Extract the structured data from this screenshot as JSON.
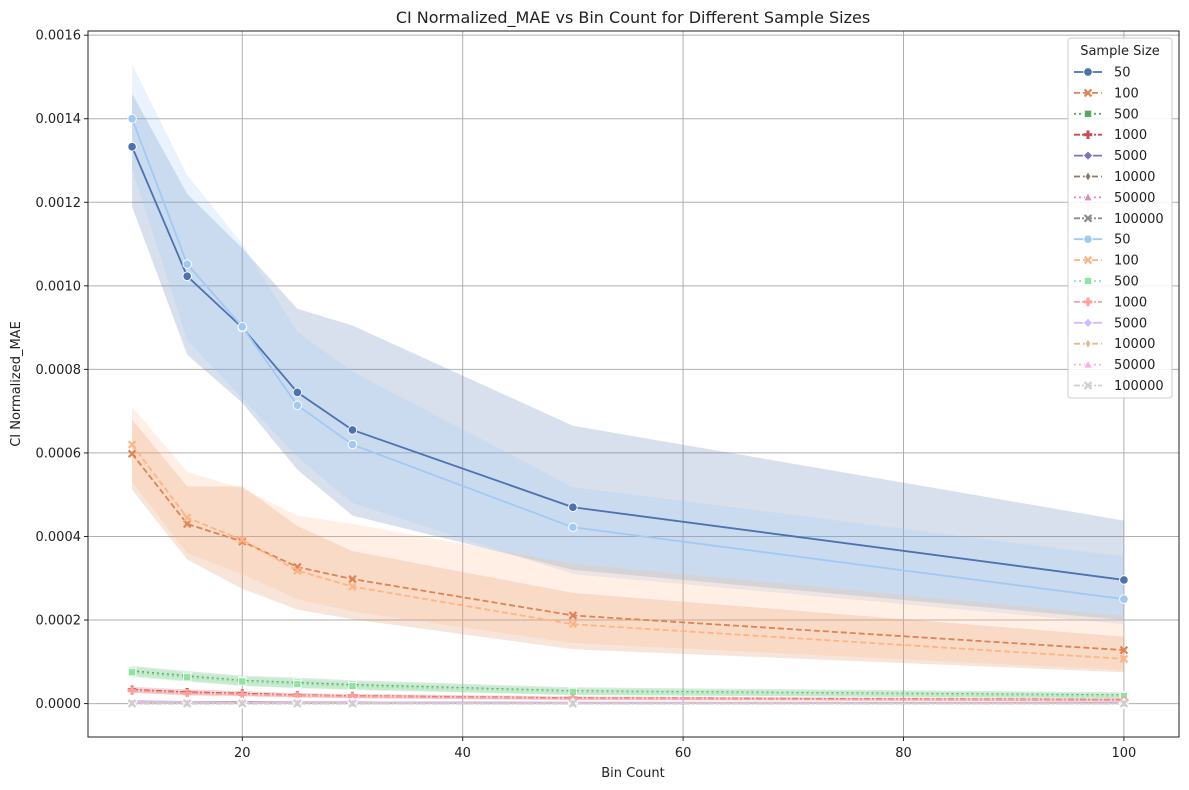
{
  "chart_data": {
    "type": "line",
    "title": "CI Normalized_MAE vs Bin Count for Different Sample Sizes",
    "xlabel": "Bin Count",
    "ylabel": "CI Normalized_MAE",
    "xlim": [
      6,
      105
    ],
    "ylim": [
      -8e-05,
      0.00161
    ],
    "xticks": [
      20,
      40,
      60,
      80,
      100
    ],
    "yticks": [
      0,
      0.0002,
      0.0004,
      0.0006,
      0.0008,
      0.001,
      0.0012,
      0.0014,
      0.0016
    ],
    "ytick_labels": [
      "0.0000",
      "0.0002",
      "0.0004",
      "0.0006",
      "0.0008",
      "0.0010",
      "0.0012",
      "0.0014",
      "0.0016"
    ],
    "grid": true,
    "legend_title": "Sample Size",
    "legend_position": "top-right",
    "x": [
      10,
      15,
      20,
      25,
      30,
      50,
      100
    ],
    "series": [
      {
        "name": "50",
        "color": "#4c72b0",
        "dash": "",
        "marker": "circle",
        "values": [
          0.001333,
          0.001023,
          0.0009,
          0.000745,
          0.000655,
          0.00047,
          0.000296
        ],
        "lower": [
          0.00119,
          0.000835,
          0.00072,
          0.00056,
          0.00045,
          0.00032,
          0.0002
        ],
        "upper": [
          0.00146,
          0.00122,
          0.00109,
          0.000945,
          0.000905,
          0.000665,
          0.000438
        ]
      },
      {
        "name": "100",
        "color": "#dd8452",
        "dash": "6,3",
        "marker": "x",
        "values": [
          0.000598,
          0.00043,
          0.000388,
          0.000327,
          0.000298,
          0.000211,
          0.000128
        ],
        "lower": [
          0.000512,
          0.000345,
          0.000275,
          0.000225,
          0.000202,
          0.00013,
          7.5e-05
        ],
        "upper": [
          0.00068,
          0.00052,
          0.00052,
          0.000425,
          0.000365,
          0.000265,
          0.00016
        ]
      },
      {
        "name": "500",
        "color": "#55a868",
        "dash": "2,3",
        "marker": "square",
        "values": [
          7.8e-05,
          6.6e-05,
          5.5e-05,
          5e-05,
          4.5e-05,
          3e-05,
          2e-05
        ],
        "lower": [
          6.6e-05,
          5.4e-05,
          4.3e-05,
          3.8e-05,
          3.4e-05,
          2.1e-05,
          1.3e-05
        ],
        "upper": [
          9e-05,
          7.8e-05,
          6.7e-05,
          6.2e-05,
          5.6e-05,
          3.9e-05,
          2.7e-05
        ]
      },
      {
        "name": "1000",
        "color": "#c44e52",
        "dash": "6,2,2,2",
        "marker": "plus",
        "values": [
          3.3e-05,
          2.7e-05,
          2.4e-05,
          2e-05,
          1.8e-05,
          1.3e-05,
          9e-06
        ],
        "lower": [
          2.6e-05,
          2e-05,
          1.8e-05,
          1.5e-05,
          1.3e-05,
          9e-06,
          5e-06
        ],
        "upper": [
          4e-05,
          3.4e-05,
          3e-05,
          2.5e-05,
          2.3e-05,
          1.7e-05,
          1.3e-05
        ]
      },
      {
        "name": "5000",
        "color": "#8172b3",
        "dash": "",
        "marker": "diamond",
        "values": [
          5e-06,
          4e-06,
          4e-06,
          3e-06,
          3e-06,
          2e-06,
          2e-06
        ],
        "lower": [
          3e-06,
          2e-06,
          2e-06,
          2e-06,
          2e-06,
          1e-06,
          1e-06
        ],
        "upper": [
          7e-06,
          6e-06,
          6e-06,
          4e-06,
          4e-06,
          3e-06,
          3e-06
        ]
      },
      {
        "name": "10000",
        "color": "#937860",
        "dash": "6,3",
        "marker": "thin-diamond",
        "values": [
          3e-06,
          3e-06,
          2e-06,
          2e-06,
          2e-06,
          1e-06,
          1e-06
        ],
        "lower": [
          2e-06,
          2e-06,
          1e-06,
          1e-06,
          1e-06,
          5e-07,
          5e-07
        ],
        "upper": [
          4e-06,
          4e-06,
          3e-06,
          3e-06,
          3e-06,
          2e-06,
          2e-06
        ]
      },
      {
        "name": "50000",
        "color": "#da8bc3",
        "dash": "2,3",
        "marker": "triangle",
        "values": [
          1e-06,
          1e-06,
          1e-06,
          1e-06,
          1e-06,
          5e-07,
          5e-07
        ],
        "lower": [
          5e-07,
          5e-07,
          5e-07,
          5e-07,
          5e-07,
          2e-07,
          2e-07
        ],
        "upper": [
          1.5e-06,
          1.5e-06,
          1.5e-06,
          1.5e-06,
          1.5e-06,
          8e-07,
          8e-07
        ]
      },
      {
        "name": "100000",
        "color": "#8c8c8c",
        "dash": "6,2,2,2",
        "marker": "x",
        "values": [
          5e-07,
          5e-07,
          5e-07,
          5e-07,
          5e-07,
          3e-07,
          3e-07
        ],
        "lower": [
          2e-07,
          2e-07,
          2e-07,
          2e-07,
          2e-07,
          1e-07,
          1e-07
        ],
        "upper": [
          8e-07,
          8e-07,
          8e-07,
          8e-07,
          8e-07,
          5e-07,
          5e-07
        ]
      },
      {
        "name": "50",
        "color": "#a1c9f4",
        "dash": "",
        "marker": "circle",
        "values": [
          0.0014,
          0.001052,
          0.000902,
          0.000714,
          0.00062,
          0.000422,
          0.00025
        ],
        "lower": [
          0.00128,
          0.00087,
          0.00073,
          0.00059,
          0.00048,
          0.00031,
          0.00019
        ],
        "upper": [
          0.00153,
          0.001265,
          0.0011,
          0.00089,
          0.000795,
          0.000518,
          0.000352
        ]
      },
      {
        "name": "100",
        "color": "#ffb482",
        "dash": "6,3",
        "marker": "x",
        "values": [
          0.00062,
          0.000445,
          0.000392,
          0.000318,
          0.00028,
          0.00019,
          0.000107
        ],
        "lower": [
          0.00053,
          0.00036,
          0.00031,
          0.00025,
          0.00022,
          0.000145,
          8e-05
        ],
        "upper": [
          0.00071,
          0.000555,
          0.000515,
          0.00045,
          0.00043,
          0.000335,
          0.00021
        ]
      },
      {
        "name": "500",
        "color": "#8de5a1",
        "dash": "2,3",
        "marker": "square",
        "values": [
          7.5e-05,
          6.3e-05,
          5.3e-05,
          4.7e-05,
          4.2e-05,
          2.8e-05,
          1.8e-05
        ],
        "lower": [
          6.3e-05,
          5.2e-05,
          4.2e-05,
          3.6e-05,
          3.2e-05,
          2e-05,
          1.2e-05
        ],
        "upper": [
          8.7e-05,
          7.4e-05,
          6.4e-05,
          5.8e-05,
          5.2e-05,
          3.6e-05,
          2.4e-05
        ]
      },
      {
        "name": "1000",
        "color": "#ff9f9b",
        "dash": "6,2,2,2",
        "marker": "plus",
        "values": [
          3.1e-05,
          2.5e-05,
          2.2e-05,
          1.9e-05,
          1.7e-05,
          1.2e-05,
          8e-06
        ],
        "lower": [
          2.5e-05,
          1.9e-05,
          1.7e-05,
          1.4e-05,
          1.2e-05,
          8e-06,
          5e-06
        ],
        "upper": [
          3.7e-05,
          3.1e-05,
          2.7e-05,
          2.4e-05,
          2.2e-05,
          1.6e-05,
          1.1e-05
        ]
      },
      {
        "name": "5000",
        "color": "#d0bbff",
        "dash": "",
        "marker": "diamond",
        "values": [
          4e-06,
          4e-06,
          3e-06,
          3e-06,
          3e-06,
          2e-06,
          1e-06
        ],
        "lower": [
          2e-06,
          2e-06,
          2e-06,
          2e-06,
          2e-06,
          1e-06,
          5e-07
        ],
        "upper": [
          6e-06,
          6e-06,
          4e-06,
          4e-06,
          4e-06,
          3e-06,
          2e-06
        ]
      },
      {
        "name": "10000",
        "color": "#debb9b",
        "dash": "6,3",
        "marker": "thin-diamond",
        "values": [
          2e-06,
          2e-06,
          2e-06,
          2e-06,
          1e-06,
          1e-06,
          1e-06
        ],
        "lower": [
          1e-06,
          1e-06,
          1e-06,
          1e-06,
          5e-07,
          5e-07,
          5e-07
        ],
        "upper": [
          3e-06,
          3e-06,
          3e-06,
          3e-06,
          1.5e-06,
          1.5e-06,
          1.5e-06
        ]
      },
      {
        "name": "50000",
        "color": "#fab0e4",
        "dash": "2,3",
        "marker": "triangle",
        "values": [
          1e-06,
          1e-06,
          1e-06,
          1e-06,
          5e-07,
          5e-07,
          5e-07
        ],
        "lower": [
          5e-07,
          5e-07,
          5e-07,
          5e-07,
          2e-07,
          2e-07,
          2e-07
        ],
        "upper": [
          1.5e-06,
          1.5e-06,
          1.5e-06,
          1.5e-06,
          8e-07,
          8e-07,
          8e-07
        ]
      },
      {
        "name": "100000",
        "color": "#cfcfcf",
        "dash": "6,2,2,2",
        "marker": "x",
        "values": [
          4e-07,
          4e-07,
          4e-07,
          4e-07,
          4e-07,
          2e-07,
          2e-07
        ],
        "lower": [
          1e-07,
          1e-07,
          1e-07,
          1e-07,
          1e-07,
          1e-07,
          1e-07
        ],
        "upper": [
          7e-07,
          7e-07,
          7e-07,
          7e-07,
          7e-07,
          4e-07,
          4e-07
        ]
      }
    ]
  }
}
